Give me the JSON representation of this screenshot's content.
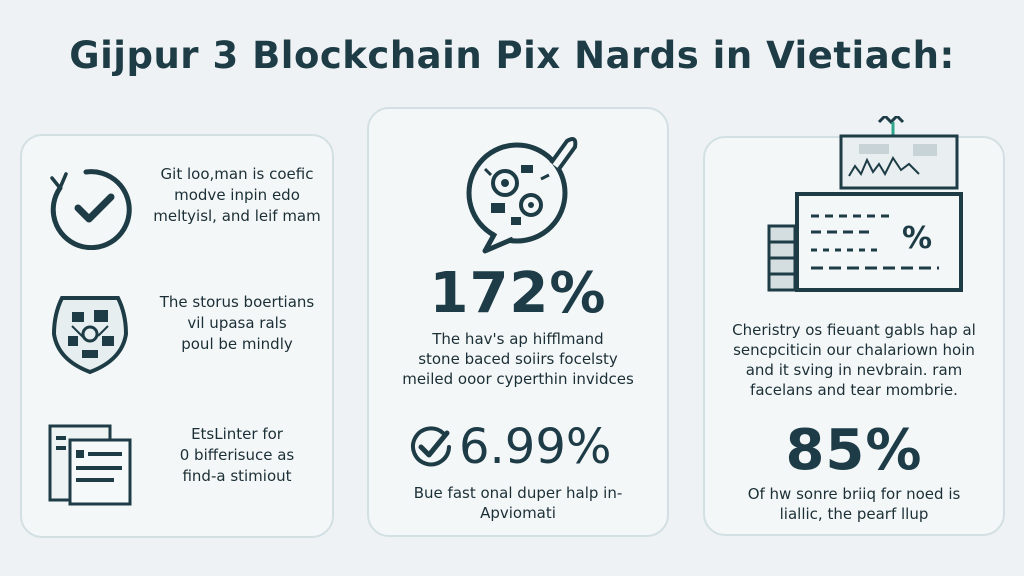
{
  "title": "Gijpur 3 Blockchain Pix Nards in Vietiach:",
  "left_card": {
    "items": [
      {
        "icon": "checkmark-circle-icon",
        "lines": [
          "Git loo,man is coefic",
          "modve inpin edo",
          "meltyisl, and leif mam"
        ]
      },
      {
        "icon": "shield-icon",
        "lines": [
          "The storus boertians",
          "vil upasa rals",
          "poul be mindly"
        ]
      },
      {
        "icon": "document-list-icon",
        "lines": [
          "EtsLinter for",
          "0 bifferisuce as",
          "find-a stimiout"
        ]
      }
    ]
  },
  "mid_card": {
    "icon": "gears-speech-bubble-icon",
    "big_stat": "172%",
    "lines": [
      "The hav's ap hifflmand",
      "stone baced soiirs focelsty",
      "meiled ooor cyperthin invidces"
    ],
    "stat2": "6.99%",
    "lines2": [
      "Bue fast onal duper halp in-",
      "Apviomati"
    ]
  },
  "right_card": {
    "icon": "building-chart-icon",
    "icon_label": "%",
    "lines": [
      "Cheristry os fieuant gabls hap al",
      "sencpciticin our chalariown hoin",
      "and it sving in nevbrain. ram",
      "facelans and tear mombrie."
    ],
    "big_stat": "85%",
    "lines2": [
      "Of hw sonre briiq for noed is",
      "liallic, the pearf llup"
    ]
  },
  "colors": {
    "ink": "#1d3c46",
    "card_bg": "#f4f7f8",
    "card_border": "#d3e0e3",
    "page_bg": "#eef2f4"
  }
}
